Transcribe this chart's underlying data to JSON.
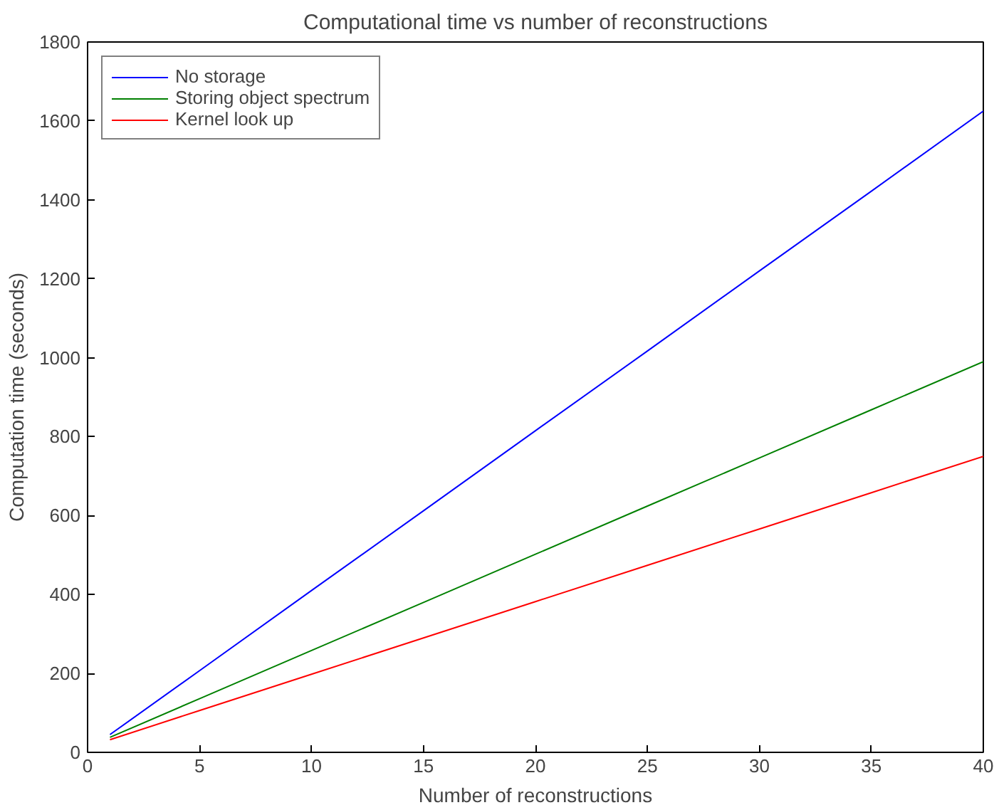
{
  "chart_data": {
    "type": "line",
    "title": "Computational time vs number of reconstructions",
    "xlabel": "Number of reconstructions",
    "ylabel": "Computation time (seconds)",
    "x": [
      1,
      5,
      10,
      15,
      20,
      25,
      30,
      35,
      40
    ],
    "series": [
      {
        "name": "No storage",
        "color": "#0000ff",
        "values": [
          45,
          207,
          410,
          612,
          815,
          1017,
          1220,
          1422,
          1625
        ]
      },
      {
        "name": "Storing object spectrum",
        "color": "#008000",
        "values": [
          38,
          136,
          258,
          380,
          502,
          624,
          746,
          868,
          990
        ]
      },
      {
        "name": "Kernel look up",
        "color": "#ff0000",
        "values": [
          32,
          106,
          198,
          290,
          382,
          474,
          566,
          658,
          750
        ]
      }
    ],
    "xlim": [
      0,
      40
    ],
    "ylim": [
      0,
      1800
    ],
    "xticks": [
      0,
      5,
      10,
      15,
      20,
      25,
      30,
      35,
      40
    ],
    "yticks": [
      0,
      200,
      400,
      600,
      800,
      1000,
      1200,
      1400,
      1600,
      1800
    ],
    "grid": false,
    "legend": "top left",
    "marker": "none",
    "line_style": "solid"
  }
}
